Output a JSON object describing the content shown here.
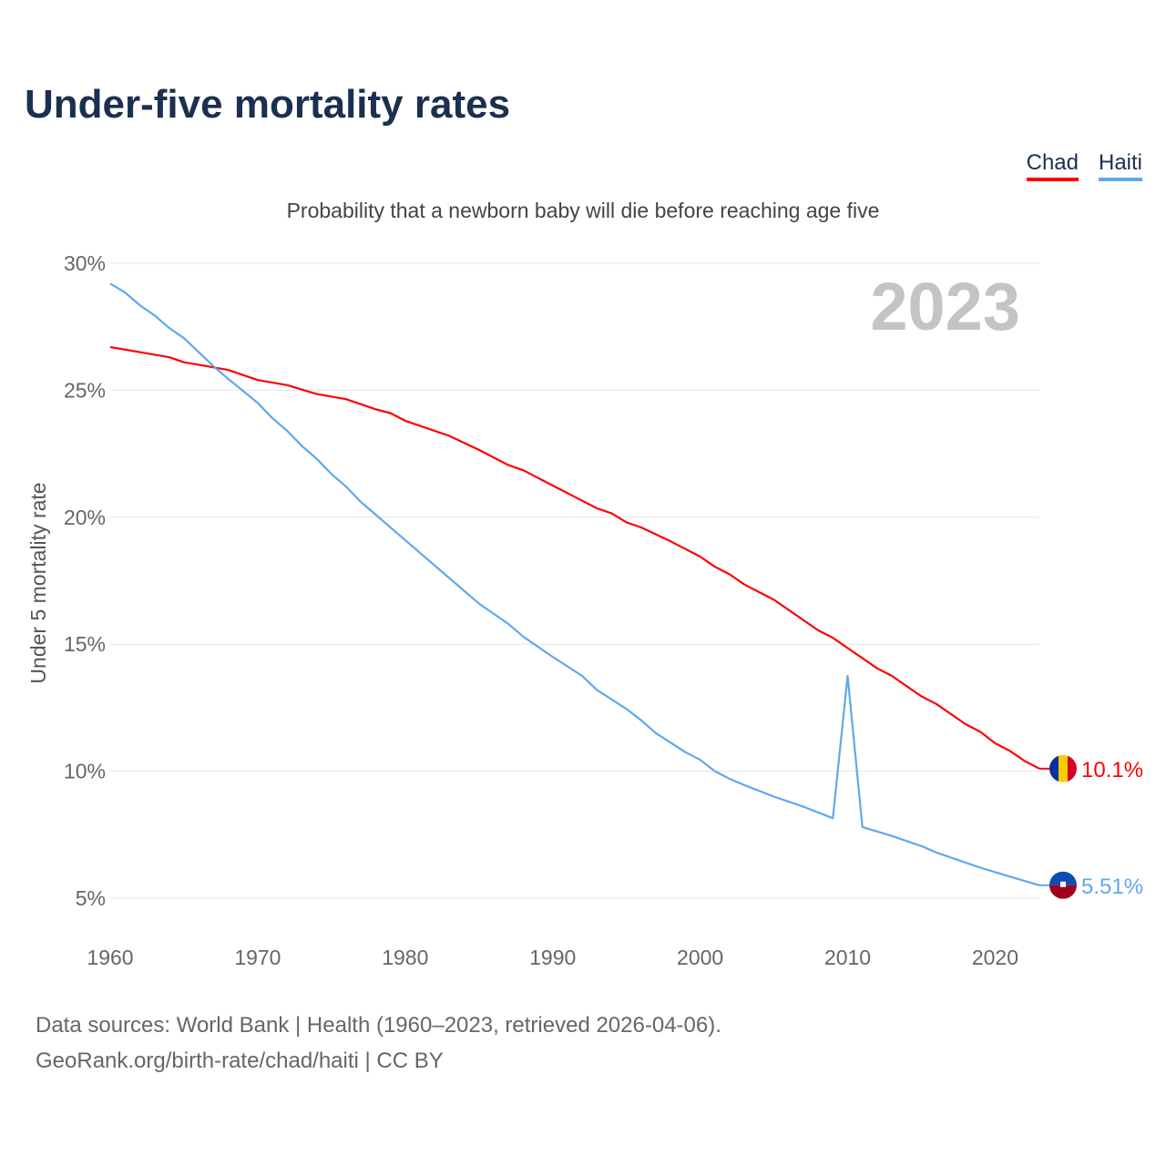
{
  "title": "Under-five mortality rates",
  "legend": [
    {
      "label": "Chad",
      "color": "#ff0000"
    },
    {
      "label": "Haiti",
      "color": "#5fa8ee"
    }
  ],
  "subtitle": "Probability that a newborn baby will die before reaching age five",
  "source_line1": "Data sources: World Bank | Health (1960–2023, retrieved 2026-04-06).",
  "source_line2": "GeoRank.org/birth-rate/chad/haiti | CC BY",
  "chart_data": {
    "type": "line",
    "title": "Under-five mortality rates",
    "xlabel": "",
    "ylabel": "Under 5 mortality rate",
    "year_label": "2023",
    "xlim": [
      1960,
      2023
    ],
    "ylim": [
      5,
      30
    ],
    "xticks": [
      "1960",
      "1970",
      "1980",
      "1990",
      "2000",
      "2010",
      "2020"
    ],
    "yticks": [
      "5%",
      "10%",
      "15%",
      "20%",
      "25%",
      "30%"
    ],
    "grid": true,
    "legend_position": "top-right",
    "series": [
      {
        "name": "Chad",
        "color": "#ff0000",
        "end_label": "10.1%",
        "flag": "chad",
        "points": [
          [
            1960,
            26.7
          ],
          [
            1964,
            26.3
          ],
          [
            1965,
            26.1
          ],
          [
            1968,
            25.8
          ],
          [
            1969,
            25.6
          ],
          [
            1970,
            25.4
          ],
          [
            1972,
            25.2
          ],
          [
            1974,
            24.85
          ],
          [
            1976,
            24.65
          ],
          [
            1978,
            24.25
          ],
          [
            1979,
            24.1
          ],
          [
            1980,
            23.8
          ],
          [
            1983,
            23.2
          ],
          [
            1985,
            22.65
          ],
          [
            1987,
            22.05
          ],
          [
            1988,
            21.85
          ],
          [
            1990,
            21.25
          ],
          [
            1993,
            20.35
          ],
          [
            1994,
            20.15
          ],
          [
            1995,
            19.8
          ],
          [
            1996,
            19.6
          ],
          [
            1998,
            19.05
          ],
          [
            2000,
            18.45
          ],
          [
            2001,
            18.05
          ],
          [
            2002,
            17.75
          ],
          [
            2003,
            17.35
          ],
          [
            2005,
            16.75
          ],
          [
            2008,
            15.55
          ],
          [
            2009,
            15.25
          ],
          [
            2010,
            14.85
          ],
          [
            2012,
            14.05
          ],
          [
            2013,
            13.75
          ],
          [
            2015,
            12.95
          ],
          [
            2016,
            12.65
          ],
          [
            2018,
            11.85
          ],
          [
            2019,
            11.55
          ],
          [
            2020,
            11.1
          ],
          [
            2021,
            10.8
          ],
          [
            2022,
            10.4
          ],
          [
            2023,
            10.1
          ]
        ]
      },
      {
        "name": "Haiti",
        "color": "#5fa8ee",
        "end_label": "5.51%",
        "flag": "haiti",
        "points": [
          [
            1960,
            29.2
          ],
          [
            1961,
            28.85
          ],
          [
            1962,
            28.35
          ],
          [
            1963,
            27.95
          ],
          [
            1964,
            27.45
          ],
          [
            1965,
            27.05
          ],
          [
            1966,
            26.5
          ],
          [
            1967,
            25.95
          ],
          [
            1968,
            25.45
          ],
          [
            1969,
            24.98
          ],
          [
            1970,
            24.5
          ],
          [
            1971,
            23.9
          ],
          [
            1972,
            23.4
          ],
          [
            1973,
            22.8
          ],
          [
            1974,
            22.3
          ],
          [
            1975,
            21.7
          ],
          [
            1976,
            21.2
          ],
          [
            1977,
            20.6
          ],
          [
            1978,
            20.1
          ],
          [
            1980,
            19.1
          ],
          [
            1985,
            16.6
          ],
          [
            1987,
            15.8
          ],
          [
            1988,
            15.3
          ],
          [
            1990,
            14.5
          ],
          [
            1992,
            13.75
          ],
          [
            1993,
            13.2
          ],
          [
            1995,
            12.45
          ],
          [
            1996,
            12.0
          ],
          [
            1997,
            11.5
          ],
          [
            1999,
            10.75
          ],
          [
            2000,
            10.45
          ],
          [
            2001,
            10.0
          ],
          [
            2002,
            9.7
          ],
          [
            2003,
            9.45
          ],
          [
            2005,
            9.0
          ],
          [
            2007,
            8.6
          ],
          [
            2009,
            8.15
          ],
          [
            2010,
            13.75
          ],
          [
            2011,
            7.8
          ],
          [
            2013,
            7.45
          ],
          [
            2015,
            7.05
          ],
          [
            2016,
            6.8
          ],
          [
            2017,
            6.6
          ],
          [
            2019,
            6.2
          ],
          [
            2021,
            5.85
          ],
          [
            2023,
            5.51
          ]
        ]
      }
    ]
  }
}
